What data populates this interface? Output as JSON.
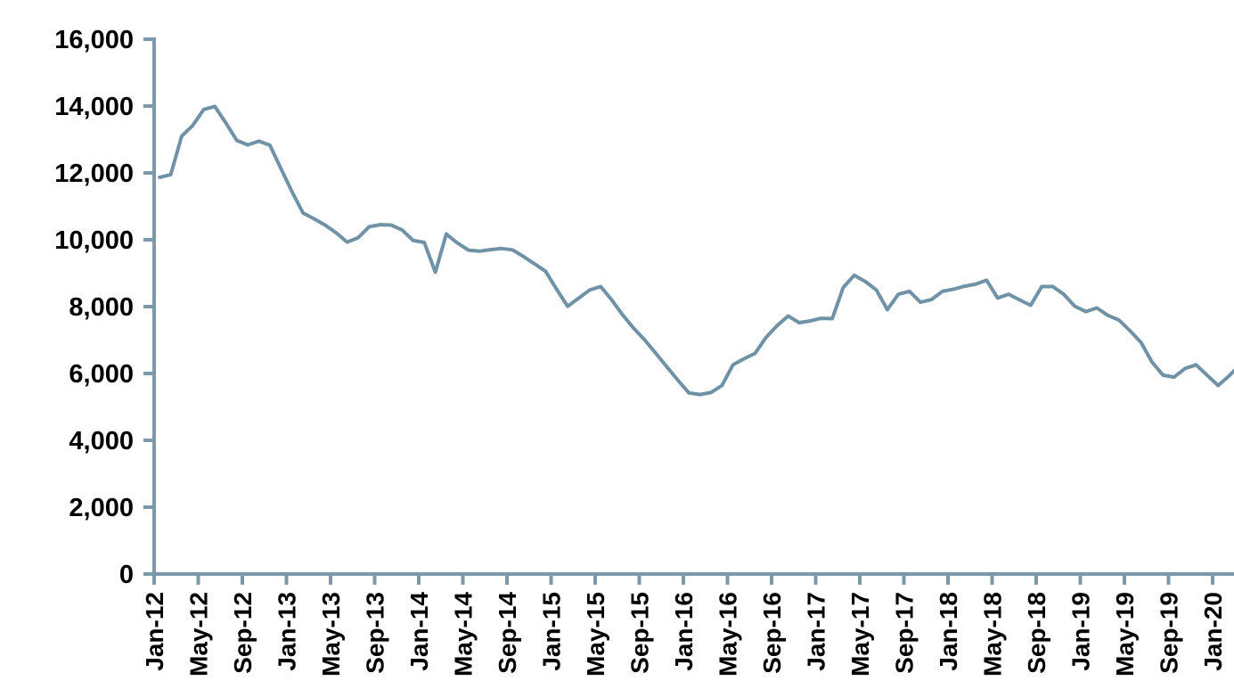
{
  "page": {
    "background_color": "#ffffff",
    "title": ""
  },
  "chart_data": {
    "type": "line",
    "title": "",
    "subtitle": "",
    "xlabel": "",
    "ylabel": "",
    "legend": "none",
    "grid": "off",
    "ylim": [
      0,
      16000
    ],
    "y_tick_step": 2000,
    "y_tick_labels": [
      "0",
      "2,000",
      "4,000",
      "6,000",
      "8,000",
      "10,000",
      "12,000",
      "14,000",
      "16,000"
    ],
    "x_tick_label_every_n_months": 4,
    "x_tick_labels": [
      "Jan-12",
      "May-12",
      "Sep-12",
      "Jan-13",
      "May-13",
      "Sep-13",
      "Jan-14",
      "May-14",
      "Sep-14",
      "Jan-15",
      "May-15",
      "Sep-15",
      "Jan-16",
      "May-16",
      "Sep-16",
      "Jan-17",
      "May-17",
      "Sep-17",
      "Jan-18",
      "May-18",
      "Sep-18",
      "Jan-19",
      "May-19",
      "Sep-19",
      "Jan-20"
    ],
    "x": [
      "Jan-12",
      "Feb-12",
      "Mar-12",
      "Apr-12",
      "May-12",
      "Jun-12",
      "Jul-12",
      "Aug-12",
      "Sep-12",
      "Oct-12",
      "Nov-12",
      "Dec-12",
      "Jan-13",
      "Feb-13",
      "Mar-13",
      "Apr-13",
      "May-13",
      "Jun-13",
      "Jul-13",
      "Aug-13",
      "Sep-13",
      "Oct-13",
      "Nov-13",
      "Dec-13",
      "Jan-14",
      "Feb-14",
      "Mar-14",
      "Apr-14",
      "May-14",
      "Jun-14",
      "Jul-14",
      "Aug-14",
      "Sep-14",
      "Oct-14",
      "Nov-14",
      "Dec-14",
      "Jan-15",
      "Feb-15",
      "Mar-15",
      "Apr-15",
      "May-15",
      "Jun-15",
      "Jul-15",
      "Aug-15",
      "Sep-15",
      "Oct-15",
      "Nov-15",
      "Dec-15",
      "Jan-16",
      "Feb-16",
      "Mar-16",
      "Apr-16",
      "May-16",
      "Jun-16",
      "Jul-16",
      "Aug-16",
      "Sep-16",
      "Oct-16",
      "Nov-16",
      "Dec-16",
      "Jan-17",
      "Feb-17",
      "Mar-17",
      "Apr-17",
      "May-17",
      "Jun-17",
      "Jul-17",
      "Aug-17",
      "Sep-17",
      "Oct-17",
      "Nov-17",
      "Dec-17",
      "Jan-18",
      "Feb-18",
      "Mar-18",
      "Apr-18",
      "May-18",
      "Jun-18",
      "Jul-18",
      "Aug-18",
      "Sep-18",
      "Oct-18",
      "Nov-18",
      "Dec-18",
      "Jan-19",
      "Feb-19",
      "Mar-19",
      "Apr-19",
      "May-19",
      "Jun-19",
      "Jul-19",
      "Aug-19",
      "Sep-19",
      "Oct-19",
      "Nov-19",
      "Dec-19",
      "Jan-20",
      "Feb-20",
      "Mar-20",
      "Apr-20"
    ],
    "series": [
      {
        "name": "series-1",
        "values": [
          11870,
          11950,
          13100,
          13420,
          13900,
          13990,
          13500,
          12970,
          12840,
          12950,
          12830,
          12130,
          11440,
          10800,
          10630,
          10440,
          10210,
          9930,
          10060,
          10390,
          10450,
          10440,
          10290,
          9975,
          9920,
          9030,
          10170,
          9905,
          9690,
          9660,
          9705,
          9740,
          9700,
          9500,
          9280,
          9060,
          8520,
          8010,
          8250,
          8500,
          8600,
          8200,
          7750,
          7350,
          7000,
          6600,
          6200,
          5800,
          5420,
          5370,
          5430,
          5640,
          6260,
          6440,
          6600,
          7080,
          7430,
          7720,
          7520,
          7570,
          7650,
          7640,
          8570,
          8940,
          8750,
          8500,
          7910,
          8370,
          8460,
          8130,
          8210,
          8460,
          8520,
          8610,
          8670,
          8790,
          8260,
          8370,
          8200,
          8040,
          8600,
          8600,
          8370,
          8010,
          7850,
          7960,
          7740,
          7600,
          7280,
          6930,
          6345,
          5950,
          5890,
          6150,
          6260,
          5950,
          5640,
          5930,
          6260,
          6100
        ]
      }
    ],
    "colors": {
      "line": "#6F92A6",
      "axis": "#7C99AA",
      "tick": "#7C99AA",
      "label": "#000000"
    }
  }
}
